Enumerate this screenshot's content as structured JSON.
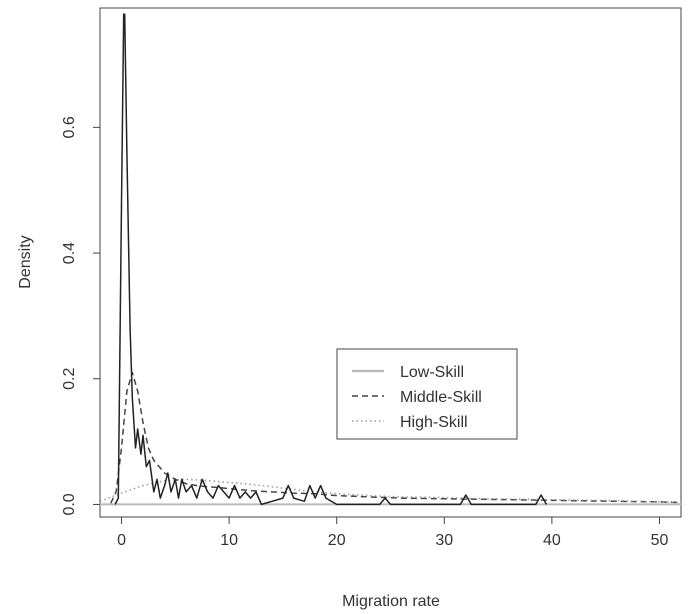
{
  "chart_data": {
    "type": "line",
    "title": "",
    "xlabel": "Migration rate",
    "ylabel": "Density",
    "xlim": [
      -2,
      52
    ],
    "ylim": [
      -0.02,
      0.79
    ],
    "xticks": [
      0,
      10,
      20,
      30,
      40,
      50
    ],
    "yticks": [
      0.0,
      0.2,
      0.4,
      0.6
    ],
    "ytick_labels": [
      "0.0",
      "0.2",
      "0.4",
      "0.6"
    ],
    "grid": false,
    "legend_position": "center-right",
    "series": [
      {
        "name": "Low-Skill",
        "style": "solid",
        "color": "#bbbbbb",
        "x": [
          -2,
          52
        ],
        "y": [
          0.0,
          0.0
        ]
      },
      {
        "name": "Middle-Skill",
        "style": "dashed",
        "color": "#444444",
        "x": [
          -1.0,
          -0.5,
          0.0,
          0.5,
          1.0,
          1.5,
          2.0,
          2.5,
          3.0,
          4.0,
          5.0,
          6.0,
          7.0,
          8.0,
          9.0,
          10.0,
          12.0,
          14.0,
          16.0,
          18.0,
          20.0,
          23.0,
          26.0,
          30.0,
          34.0,
          38.0,
          42.0,
          46.0,
          50.0,
          52.0
        ],
        "y": [
          0.002,
          0.02,
          0.09,
          0.18,
          0.21,
          0.18,
          0.13,
          0.09,
          0.07,
          0.05,
          0.04,
          0.033,
          0.03,
          0.028,
          0.027,
          0.025,
          0.022,
          0.02,
          0.018,
          0.017,
          0.014,
          0.012,
          0.01,
          0.009,
          0.008,
          0.007,
          0.006,
          0.005,
          0.004,
          0.003
        ]
      },
      {
        "name": "High-Skill",
        "style": "dotted",
        "color": "#999999",
        "x": [
          -2.0,
          0.0,
          2.0,
          4.0,
          6.0,
          8.0,
          10.0,
          12.0,
          14.0,
          16.0,
          18.0,
          20.0,
          23.0,
          26.0,
          30.0,
          34.0,
          38.0,
          42.0,
          46.0,
          50.0,
          52.0
        ],
        "y": [
          0.005,
          0.018,
          0.03,
          0.038,
          0.04,
          0.038,
          0.035,
          0.032,
          0.028,
          0.024,
          0.02,
          0.017,
          0.014,
          0.012,
          0.011,
          0.009,
          0.008,
          0.007,
          0.006,
          0.004,
          0.003
        ]
      },
      {
        "name": "",
        "style": "solid",
        "color": "#222222",
        "x": [
          -0.6,
          -0.3,
          0.0,
          0.2,
          0.3,
          0.5,
          0.8,
          1.0,
          1.3,
          1.5,
          1.8,
          2.0,
          2.3,
          2.6,
          3.0,
          3.3,
          3.6,
          4.0,
          4.3,
          4.6,
          5.0,
          5.3,
          5.6,
          6.0,
          6.5,
          7.0,
          7.5,
          8.0,
          8.5,
          9.0,
          9.5,
          10.0,
          10.5,
          11.0,
          11.5,
          12.0,
          12.5,
          13.0,
          14.0,
          15.0,
          15.5,
          16.0,
          17.0,
          17.5,
          18.0,
          18.5,
          19.0,
          20.0,
          24.0,
          24.5,
          25.0,
          31.5,
          32.0,
          32.5,
          38.5,
          39.0,
          39.5
        ],
        "y": [
          0.0,
          0.01,
          0.48,
          0.78,
          0.78,
          0.56,
          0.28,
          0.17,
          0.09,
          0.12,
          0.08,
          0.11,
          0.06,
          0.07,
          0.02,
          0.04,
          0.01,
          0.03,
          0.05,
          0.02,
          0.04,
          0.01,
          0.04,
          0.02,
          0.03,
          0.01,
          0.04,
          0.02,
          0.01,
          0.03,
          0.02,
          0.01,
          0.03,
          0.01,
          0.02,
          0.01,
          0.02,
          0.0,
          0.005,
          0.01,
          0.03,
          0.01,
          0.005,
          0.03,
          0.01,
          0.03,
          0.01,
          0.0,
          0.0,
          0.01,
          0.0,
          0.0,
          0.015,
          0.0,
          0.0,
          0.015,
          0.0
        ]
      }
    ]
  }
}
